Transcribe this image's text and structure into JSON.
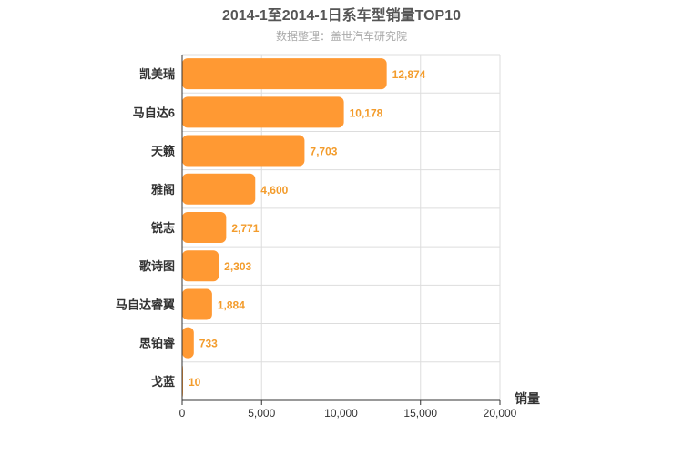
{
  "chart_data": {
    "type": "bar",
    "orientation": "horizontal",
    "title": "2014-1至2014-1日系车型销量TOP10",
    "subtitle": "数据整理：盖世汽车研究院",
    "xlabel": "销量",
    "ylabel": "",
    "xlim": [
      0,
      20000
    ],
    "xticks": [
      "0",
      "5,000",
      "10,000",
      "15,000",
      "20,000"
    ],
    "xtick_values": [
      0,
      5000,
      10000,
      15000,
      20000
    ],
    "categories": [
      "凯美瑞",
      "马自达6",
      "天籁",
      "雅阁",
      "锐志",
      "歌诗图",
      "马自达睿翼",
      "思铂睿",
      "戈蓝"
    ],
    "values": [
      12874,
      10178,
      7703,
      4600,
      2771,
      2303,
      1884,
      733,
      10
    ],
    "value_labels": [
      "12,874",
      "10,178",
      "7,703",
      "4,600",
      "2,771",
      "2,303",
      "1,884",
      "733",
      "10"
    ],
    "bar_color": "#ff9933",
    "label_color": "#f39c2c",
    "grid": true,
    "legend": "none"
  }
}
